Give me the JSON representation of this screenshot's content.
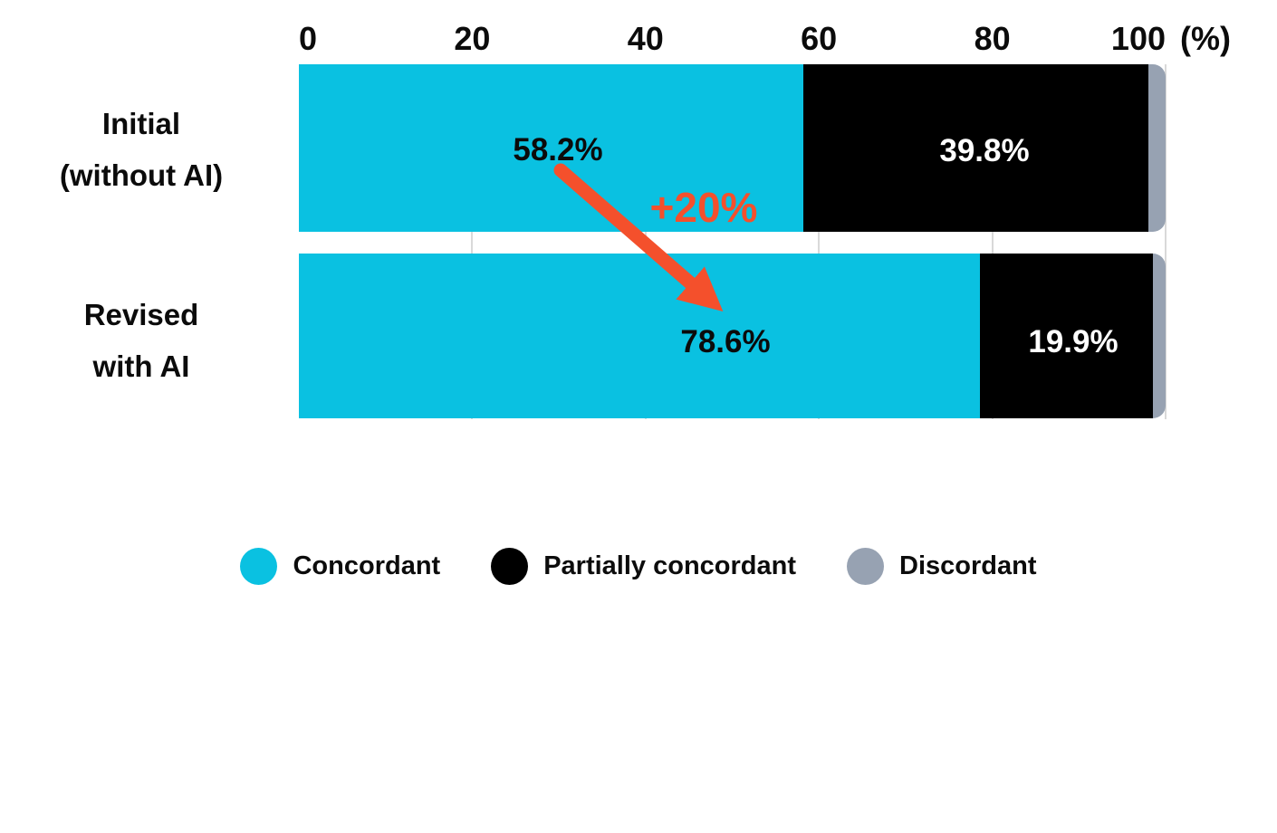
{
  "chart_data": {
    "type": "bar",
    "orientation": "horizontal",
    "stacked": true,
    "title": "",
    "unit": "(%)",
    "xlim": [
      0,
      100
    ],
    "x_ticks": [
      "0",
      "20",
      "40",
      "60",
      "80",
      "100"
    ],
    "grid": "vertical gridlines at ticks, visible between bars",
    "legend_position": "bottom",
    "categories": [
      "Initial (without AI)",
      "Revised with AI"
    ],
    "category_lines": [
      [
        "Initial",
        "(without AI)"
      ],
      [
        "Revised",
        "with AI"
      ]
    ],
    "series": [
      {
        "name": "Concordant",
        "color": "#0ac1e1",
        "values": [
          58.2,
          78.6
        ]
      },
      {
        "name": "Partially concordant",
        "color": "#000000",
        "values": [
          39.8,
          19.9
        ]
      },
      {
        "name": "Discordant",
        "color": "#97a2b2",
        "values": [
          2.0,
          1.5
        ]
      }
    ],
    "bar_labels": [
      {
        "text": "58.2%",
        "color": "#0b0b0b"
      },
      {
        "text": "39.8%",
        "color": "#ffffff"
      },
      {
        "text": "78.6%",
        "color": "#0b0b0b"
      },
      {
        "text": "19.9%",
        "color": "#ffffff"
      }
    ],
    "annotation": {
      "text": "+20%",
      "color": "#f4502c"
    }
  },
  "colors": {
    "background": "#ffffff",
    "text": "#0b0b0b",
    "gridline": "#d9d9d9",
    "accent_arrow": "#f4502c"
  }
}
